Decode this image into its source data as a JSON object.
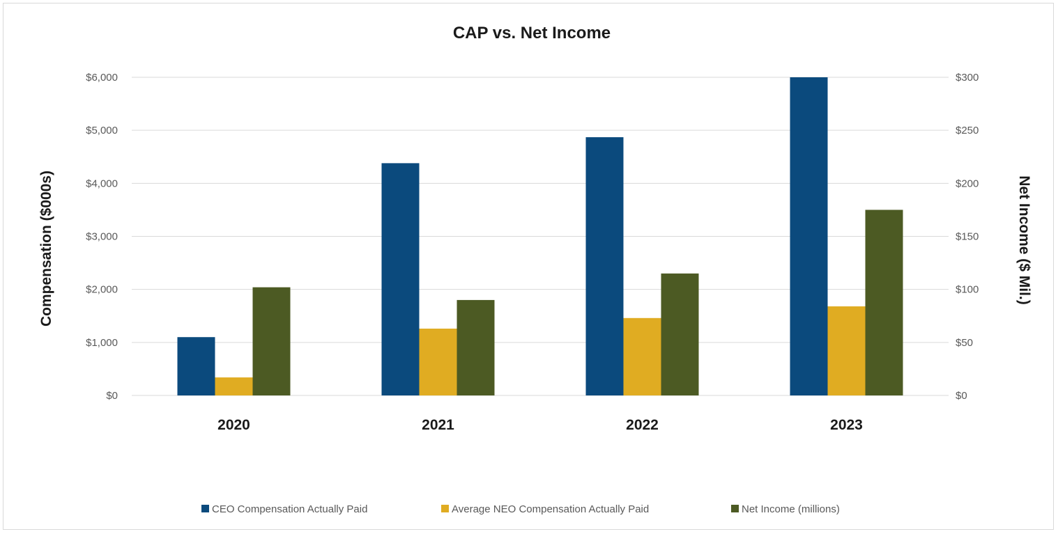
{
  "chart_data": {
    "type": "bar",
    "title": "CAP vs. Net Income",
    "categories": [
      "2020",
      "2021",
      "2022",
      "2023"
    ],
    "ylabel_left": "Compensation ($000s)",
    "ylabel_right": "Net Income ($ Mil.)",
    "ylim_left": [
      0,
      6000
    ],
    "ylim_right": [
      0,
      300
    ],
    "left_ticks": [
      "$0",
      "$1,000",
      "$2,000",
      "$3,000",
      "$4,000",
      "$5,000",
      "$6,000"
    ],
    "right_ticks": [
      "$0",
      "$50",
      "$100",
      "$150",
      "$200",
      "$250",
      "$300"
    ],
    "grid": true,
    "legend_position": "bottom",
    "series": [
      {
        "name": "CEO Compensation Actually Paid",
        "axis": "left",
        "color": "#0b4a7d",
        "values": [
          1100,
          4380,
          4870,
          6000
        ]
      },
      {
        "name": "Average NEO Compensation Actually Paid",
        "axis": "left",
        "color": "#e0ac22",
        "values": [
          340,
          1260,
          1460,
          1680
        ]
      },
      {
        "name": "Net Income (millions)",
        "axis": "right",
        "color": "#4c5a23",
        "values": [
          102,
          90,
          115,
          175
        ]
      }
    ]
  }
}
